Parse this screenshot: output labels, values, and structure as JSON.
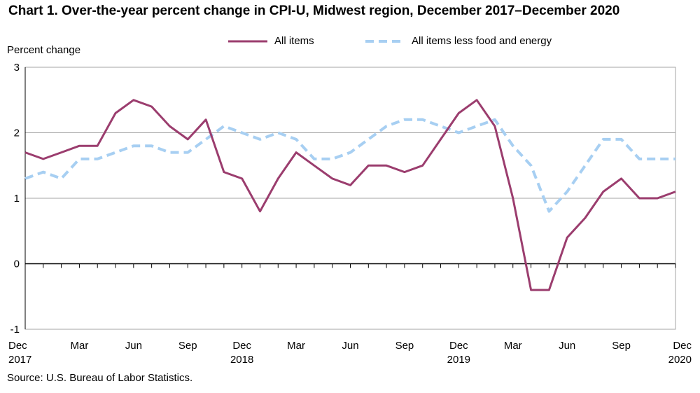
{
  "title": "Chart 1. Over-the-year percent change in CPI-U, Midwest region, December 2017–December 2020",
  "source": "Source: U.S. Bureau of Labor Statistics.",
  "colors": {
    "all_items": "#9b3d6e",
    "core": "#a7cff2",
    "grid": "#a6a6a6",
    "axis": "#000000"
  },
  "chart_data": {
    "type": "line",
    "ylabel": "Percent change",
    "xlabel": "",
    "ylim": [
      -1,
      3
    ],
    "yticks": [
      -1,
      0,
      1,
      2,
      3
    ],
    "grid": true,
    "legend_position": "top",
    "x": [
      "Dec 2017",
      "Jan 2018",
      "Feb 2018",
      "Mar 2018",
      "Apr 2018",
      "May 2018",
      "Jun 2018",
      "Jul 2018",
      "Aug 2018",
      "Sep 2018",
      "Oct 2018",
      "Nov 2018",
      "Dec 2018",
      "Jan 2019",
      "Feb 2019",
      "Mar 2019",
      "Apr 2019",
      "May 2019",
      "Jun 2019",
      "Jul 2019",
      "Aug 2019",
      "Sep 2019",
      "Oct 2019",
      "Nov 2019",
      "Dec 2019",
      "Jan 2020",
      "Feb 2020",
      "Mar 2020",
      "Apr 2020",
      "May 2020",
      "Jun 2020",
      "Jul 2020",
      "Aug 2020",
      "Sep 2020",
      "Oct 2020",
      "Nov 2020",
      "Dec 2020"
    ],
    "x_tick_labels": [
      {
        "index": 0,
        "line1": "Dec",
        "line2": "2017"
      },
      {
        "index": 3,
        "line1": "Mar",
        "line2": ""
      },
      {
        "index": 6,
        "line1": "Jun",
        "line2": ""
      },
      {
        "index": 9,
        "line1": "Sep",
        "line2": ""
      },
      {
        "index": 12,
        "line1": "Dec",
        "line2": "2018"
      },
      {
        "index": 15,
        "line1": "Mar",
        "line2": ""
      },
      {
        "index": 18,
        "line1": "Jun",
        "line2": ""
      },
      {
        "index": 21,
        "line1": "Sep",
        "line2": ""
      },
      {
        "index": 24,
        "line1": "Dec",
        "line2": "2019"
      },
      {
        "index": 27,
        "line1": "Mar",
        "line2": ""
      },
      {
        "index": 30,
        "line1": "Jun",
        "line2": ""
      },
      {
        "index": 33,
        "line1": "Sep",
        "line2": ""
      },
      {
        "index": 36,
        "line1": "Dec",
        "line2": "2020"
      }
    ],
    "series": [
      {
        "name": "All items",
        "style": "solid",
        "color": "#9b3d6e",
        "values": [
          1.7,
          1.6,
          1.7,
          1.8,
          1.8,
          2.3,
          2.5,
          2.4,
          2.1,
          1.9,
          2.2,
          1.4,
          1.3,
          0.8,
          1.3,
          1.7,
          1.5,
          1.3,
          1.2,
          1.5,
          1.5,
          1.4,
          1.5,
          1.9,
          2.3,
          2.5,
          2.1,
          1.0,
          -0.4,
          -0.4,
          0.4,
          0.7,
          1.1,
          1.3,
          1.0,
          1.0,
          1.1
        ]
      },
      {
        "name": "All items less food and energy",
        "style": "dashed",
        "color": "#a7cff2",
        "values": [
          1.3,
          1.4,
          1.3,
          1.6,
          1.6,
          1.7,
          1.8,
          1.8,
          1.7,
          1.7,
          1.9,
          2.1,
          2.0,
          1.9,
          2.0,
          1.9,
          1.6,
          1.6,
          1.7,
          1.9,
          2.1,
          2.2,
          2.2,
          2.1,
          2.0,
          2.1,
          2.2,
          1.8,
          1.5,
          0.8,
          1.1,
          1.5,
          1.9,
          1.9,
          1.6,
          1.6,
          1.6
        ]
      }
    ]
  }
}
